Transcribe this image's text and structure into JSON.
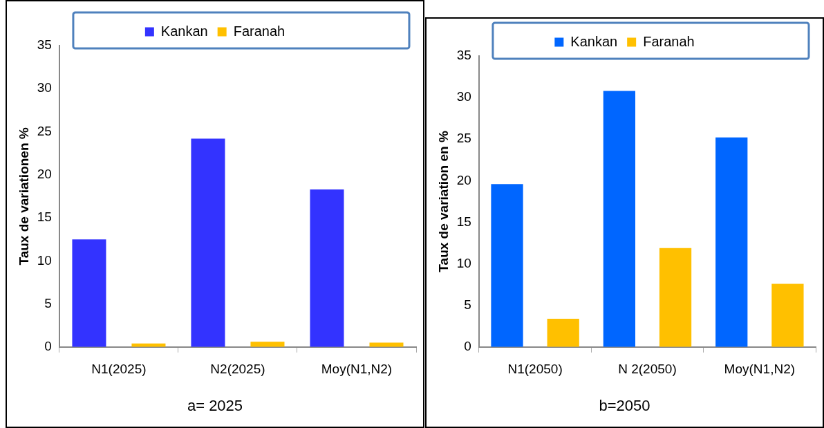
{
  "chart_data": [
    {
      "type": "bar",
      "title": "a= 2025",
      "ylabel": "Taux de variationen %",
      "categories": [
        "N1(2025)",
        "N2(2025)",
        "Moy(N1,N2)"
      ],
      "series": [
        {
          "name": "Kankan",
          "color": "#3333ff",
          "values": [
            12.5,
            24.2,
            18.3
          ]
        },
        {
          "name": "Faranah",
          "color": "#ffc000",
          "values": [
            0.4,
            0.6,
            0.5
          ]
        }
      ],
      "ylim": [
        0,
        35
      ],
      "yticks": [
        0,
        5,
        10,
        15,
        20,
        25,
        30,
        35
      ],
      "grid": false,
      "legend": "top"
    },
    {
      "type": "bar",
      "title": "b=2050",
      "ylabel": "Taux de variation en %",
      "categories": [
        "N1(2050)",
        "N 2(2050)",
        "Moy(N1,N2)"
      ],
      "series": [
        {
          "name": "Kankan",
          "color": "#0066ff",
          "values": [
            19.6,
            30.8,
            25.2
          ]
        },
        {
          "name": "Faranah",
          "color": "#ffc000",
          "values": [
            3.4,
            11.9,
            7.6
          ]
        }
      ],
      "ylim": [
        0,
        35
      ],
      "yticks": [
        0,
        5,
        10,
        15,
        20,
        25,
        30,
        35
      ],
      "grid": false,
      "legend": "top"
    }
  ]
}
